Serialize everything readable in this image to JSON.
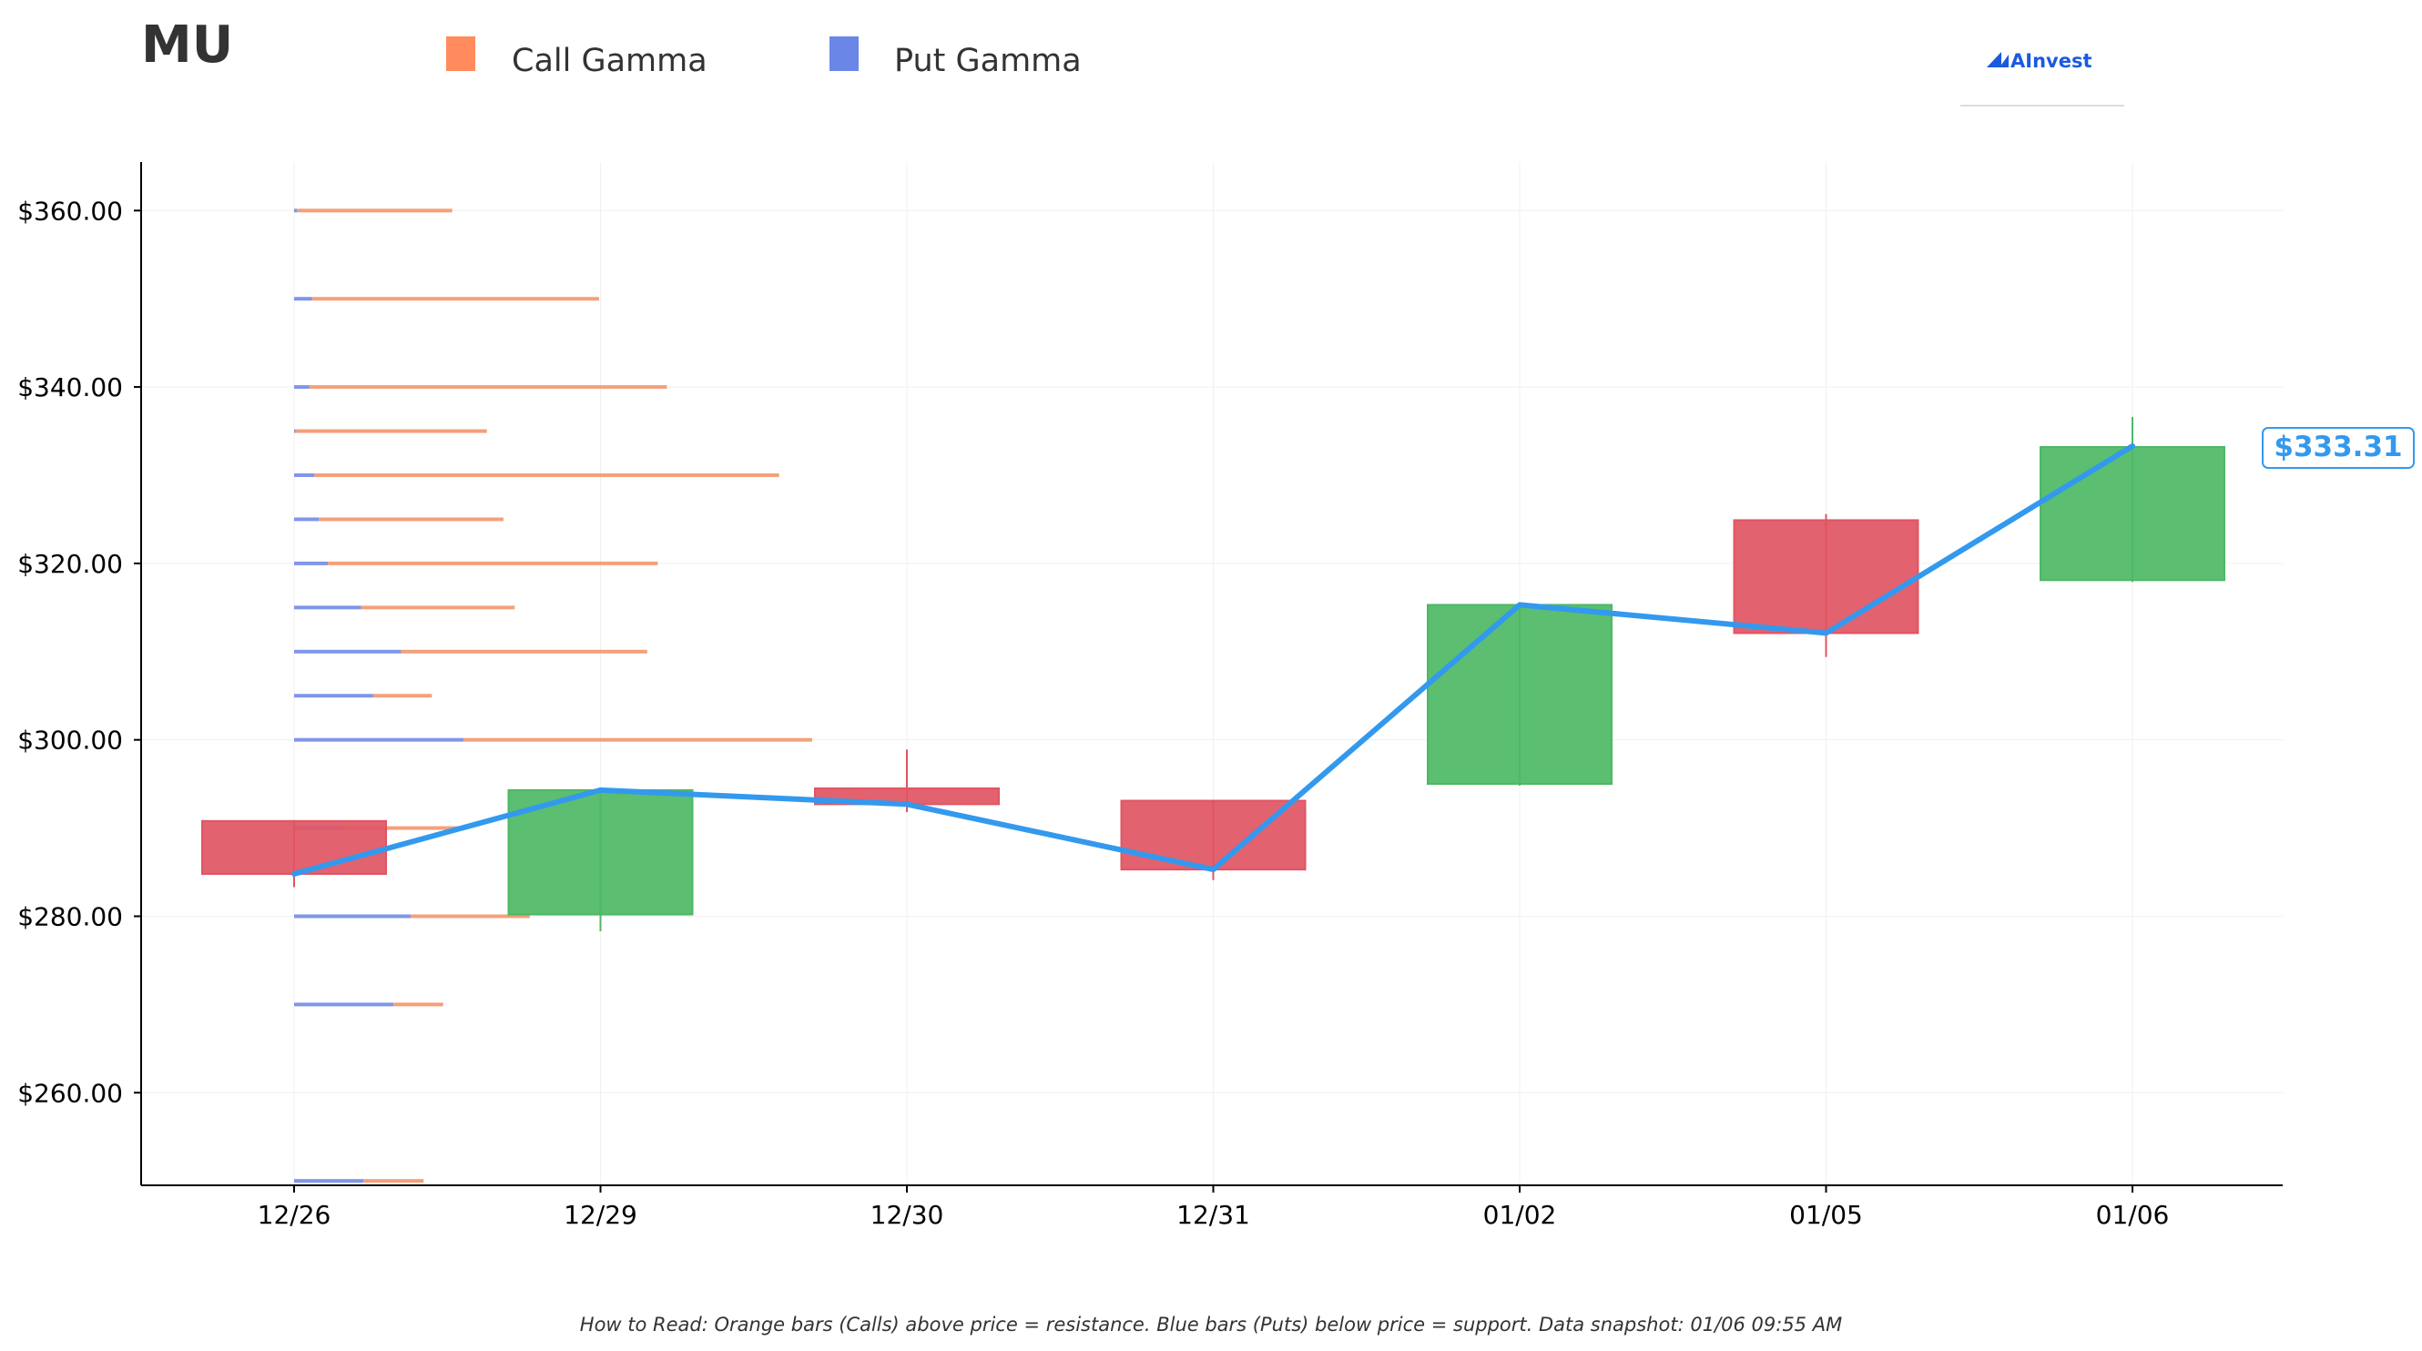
{
  "ticker": "MU",
  "brand": "AInvest",
  "note": "How to Read: Orange bars (Calls) above price = resistance. Blue bars (Puts) below price = support. Data snapshot: 01/06 09:55 AM",
  "colors": {
    "call": "#f4a07a",
    "put": "#7f96e8",
    "call_legend": "#ff8a5c",
    "put_legend": "#6a86e6",
    "up": "#4db865",
    "down": "#e05563",
    "line": "#3399ee",
    "brand": "#1a5adf"
  },
  "chart_data": {
    "type": "candlestick",
    "legend": [
      {
        "label": "Call Gamma",
        "color": "#ff8a5c"
      },
      {
        "label": "Put Gamma",
        "color": "#6a86e6"
      }
    ],
    "legend_placement": "top",
    "dates": [
      "12/26",
      "12/29",
      "12/30",
      "12/31",
      "01/02",
      "01/05",
      "01/06"
    ],
    "candles": [
      {
        "date": "12/26",
        "open": 290.8,
        "high": 290.8,
        "low": 283.3,
        "close": 284.8
      },
      {
        "date": "12/29",
        "open": 280.2,
        "high": 294.3,
        "low": 278.3,
        "close": 294.3
      },
      {
        "date": "12/30",
        "open": 294.5,
        "high": 298.9,
        "low": 291.8,
        "close": 292.7
      },
      {
        "date": "12/31",
        "open": 293.1,
        "high": 293.1,
        "low": 284.1,
        "close": 285.3
      },
      {
        "date": "01/02",
        "open": 295.0,
        "high": 315.5,
        "low": 294.8,
        "close": 315.3
      },
      {
        "date": "01/05",
        "open": 324.9,
        "high": 325.6,
        "low": 309.4,
        "close": 312.1
      },
      {
        "date": "01/06",
        "open": 318.1,
        "high": 336.6,
        "low": 317.9,
        "close": 333.2
      }
    ],
    "close_line": [
      284.8,
      294.3,
      292.7,
      285.3,
      315.3,
      312.1,
      333.31
    ],
    "current_price_label": "$333.31",
    "gamma_strikes": [
      250,
      270,
      280,
      290,
      300,
      305,
      310,
      315,
      320,
      325,
      330,
      335,
      340,
      350,
      360
    ],
    "put_gamma": [
      0.92,
      1.32,
      1.55,
      0.65,
      2.25,
      1.05,
      1.42,
      0.89,
      0.45,
      0.33,
      0.27,
      0.02,
      0.2,
      0.24,
      0.04
    ],
    "call_gamma": [
      0.8,
      0.66,
      1.58,
      1.63,
      4.63,
      0.78,
      3.27,
      2.04,
      4.38,
      2.45,
      6.17,
      2.54,
      4.75,
      3.81,
      2.06
    ],
    "gamma_unit_note": "",
    "yticks": [
      "$260.00",
      "$280.00",
      "$300.00",
      "$320.00",
      "$340.00",
      "$360.00"
    ],
    "ytick_values": [
      260,
      280,
      300,
      320,
      340,
      360
    ],
    "ylim": [
      249.5,
      365.5
    ],
    "grid": true
  }
}
